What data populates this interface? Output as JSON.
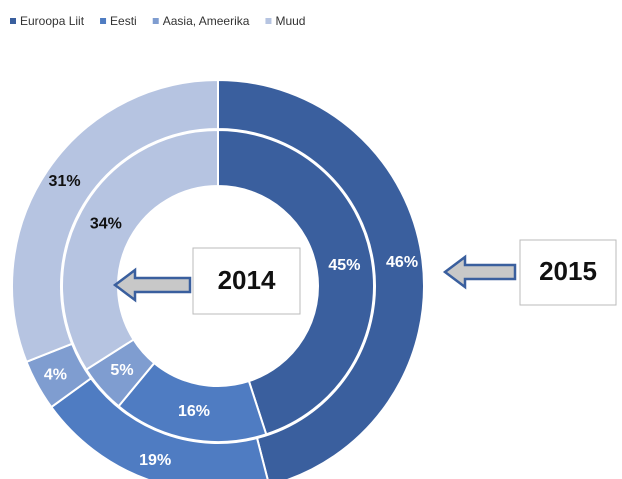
{
  "chart_data": {
    "type": "donut",
    "categories": [
      "Euroopa Liit",
      "Eesti",
      "Aasia, Ameerika",
      "Muud"
    ],
    "colors": [
      "#3a5f9e",
      "#4f7cc2",
      "#7f9dd0",
      "#b6c4e1"
    ],
    "label_colors": [
      "#ffffff",
      "#ffffff",
      "#ffffff",
      "#111111"
    ],
    "series": [
      {
        "name": "2015",
        "values": [
          46,
          19,
          4,
          31
        ],
        "value_labels": [
          "46%",
          "19%",
          "4%",
          "31%"
        ]
      },
      {
        "name": "2014",
        "values": [
          45,
          16,
          5,
          34
        ],
        "value_labels": [
          "45%",
          "16%",
          "5%",
          "34%"
        ]
      }
    ]
  }
}
